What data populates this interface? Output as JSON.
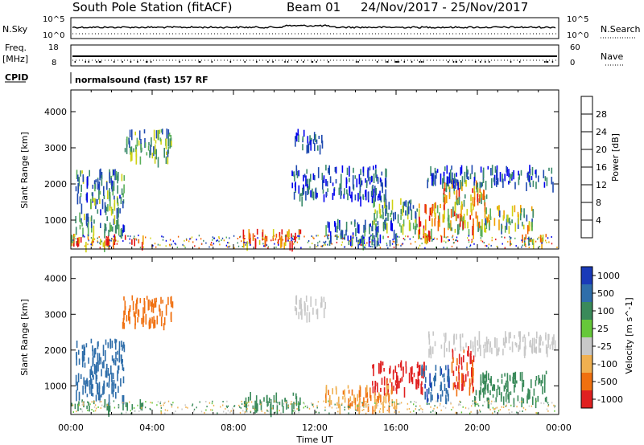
{
  "chart_data": [
    {
      "type": "line",
      "title": "South Pole Station (fitACF)",
      "beam": "Beam 01",
      "dates": "24/Nov/2017 - 25/Nov/2017",
      "left_label": "N.Sky",
      "right_label": "N.Search",
      "left_ticks": [
        "10^5",
        "10^0"
      ],
      "right_ticks": [
        "10^5",
        "10^0"
      ]
    },
    {
      "type": "line",
      "left_label_1": "Freq.",
      "left_label_2": "[MHz]",
      "right_label": "Nave",
      "left_ticks": [
        "18",
        "8"
      ],
      "right_ticks": [
        "60",
        "0"
      ]
    },
    {
      "type": "table",
      "label": "CPID",
      "value": "normalsound (fast) 157 RF"
    },
    {
      "type": "heatmap",
      "ylabel": "Slant Range [km]",
      "yticks": [
        1000,
        2000,
        3000,
        4000
      ],
      "ylim": [
        200,
        4600
      ],
      "colorbar_label": "Power [dB]",
      "colorbar_ticks": [
        "4",
        "8",
        "12",
        "16",
        "20",
        "24",
        "28"
      ],
      "colorbar_colors": [
        "#0000ee",
        "#1f4ab0",
        "#3a8a6a",
        "#5ab05a",
        "#cfd214",
        "#f0a000",
        "#f06000",
        "#e01010"
      ],
      "regions": [
        {
          "t": [
            0.0,
            3.8
          ],
          "r": [
            250,
            500
          ],
          "v": 26
        },
        {
          "t": [
            8.4,
            11.3
          ],
          "r": [
            250,
            650
          ],
          "v": 28
        },
        {
          "t": [
            14.8,
            17.2
          ],
          "r": [
            700,
            1500
          ],
          "v": 12
        },
        {
          "t": [
            17.0,
            18.4
          ],
          "r": [
            400,
            1400
          ],
          "v": 24
        },
        {
          "t": [
            18.3,
            20.5
          ],
          "r": [
            600,
            2000
          ],
          "v": 20
        },
        {
          "t": [
            20.3,
            22.8
          ],
          "r": [
            700,
            1300
          ],
          "v": 16
        },
        {
          "t": [
            21.5,
            23.6
          ],
          "r": [
            300,
            500
          ],
          "v": 20
        },
        {
          "t": [
            0.2,
            2.6
          ],
          "r": [
            600,
            2300
          ],
          "v": 10
        },
        {
          "t": [
            2.5,
            5.0
          ],
          "r": [
            2600,
            3400
          ],
          "v": 12
        },
        {
          "t": [
            11.0,
            12.5
          ],
          "r": [
            2900,
            3400
          ],
          "v": 6
        },
        {
          "t": [
            10.8,
            15.5
          ],
          "r": [
            1500,
            2400
          ],
          "v": 6
        },
        {
          "t": [
            17.5,
            23.8
          ],
          "r": [
            1900,
            2400
          ],
          "v": 6
        },
        {
          "t": [
            12.5,
            16.0
          ],
          "r": [
            300,
            900
          ],
          "v": 8
        }
      ]
    },
    {
      "type": "heatmap",
      "ylabel": "Slant Range [km]",
      "yticks": [
        1000,
        2000,
        3000,
        4000
      ],
      "ylim": [
        200,
        4600
      ],
      "xlabel": "Time UT",
      "xticks": [
        "00:00",
        "04:00",
        "08:00",
        "12:00",
        "16:00",
        "20:00",
        "00:00"
      ],
      "colorbar_label": "Velocity [m s^-1]",
      "colorbar_ticks": [
        "1000",
        "500",
        "100",
        "25",
        "-25",
        "-100",
        "-500",
        "-1000"
      ],
      "colorbar_colors": [
        "#1a3ab8",
        "#2f6eaa",
        "#3a8a5a",
        "#66c83a",
        "#c8c8c8",
        "#f0b050",
        "#f07010",
        "#e02020"
      ],
      "regions": [
        {
          "t": [
            0.0,
            3.6
          ],
          "r": [
            300,
            500
          ],
          "v": 100
        },
        {
          "t": [
            8.4,
            11.3
          ],
          "r": [
            300,
            700
          ],
          "v": 150
        },
        {
          "t": [
            14.8,
            17.4
          ],
          "r": [
            800,
            1600
          ],
          "v": -700
        },
        {
          "t": [
            17.2,
            18.6
          ],
          "r": [
            500,
            1500
          ],
          "v": 700
        },
        {
          "t": [
            18.7,
            19.8
          ],
          "r": [
            700,
            2000
          ],
          "v": -500
        },
        {
          "t": [
            19.8,
            23.4
          ],
          "r": [
            500,
            1300
          ],
          "v": 100
        },
        {
          "t": [
            2.5,
            5.0
          ],
          "r": [
            2600,
            3400
          ],
          "v": -200
        },
        {
          "t": [
            0.2,
            2.6
          ],
          "r": [
            600,
            2200
          ],
          "v": 500
        },
        {
          "t": [
            11.0,
            12.5
          ],
          "r": [
            2900,
            3400
          ],
          "v": 0
        },
        {
          "t": [
            12.5,
            16.0
          ],
          "r": [
            300,
            900
          ],
          "v": -100
        },
        {
          "t": [
            17.5,
            23.8
          ],
          "r": [
            1900,
            2400
          ],
          "v": 0
        }
      ]
    }
  ]
}
